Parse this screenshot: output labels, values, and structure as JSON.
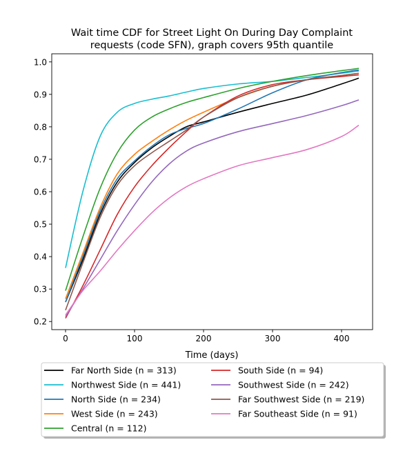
{
  "chart_data": {
    "type": "line",
    "title": "Wait time CDF for Street Light On During Day Complaint",
    "title2": "requests (code SFN), graph covers 95th quantile",
    "xlabel": "Time (days)",
    "ylabel": "",
    "xlim": [
      -20,
      445
    ],
    "ylim": [
      0.175,
      1.025
    ],
    "xticks": [
      0,
      100,
      200,
      300,
      400
    ],
    "yticks": [
      0.2,
      0.3,
      0.4,
      0.5,
      0.6,
      0.7,
      0.8,
      0.9,
      1.0
    ],
    "xtick_labels": [
      "0",
      "100",
      "200",
      "300",
      "400"
    ],
    "ytick_labels": [
      "0.2",
      "0.3",
      "0.4",
      "0.5",
      "0.6",
      "0.7",
      "0.8",
      "0.9",
      "1.0"
    ],
    "x": [
      0,
      25,
      50,
      75,
      100,
      125,
      150,
      175,
      200,
      250,
      300,
      350,
      400,
      425
    ],
    "legend_position": "below",
    "series": [
      {
        "name": "Far North Side (n = 313)",
        "color": "#000000",
        "values": [
          0.26,
          0.39,
          0.53,
          0.63,
          0.69,
          0.735,
          0.77,
          0.8,
          0.815,
          0.845,
          0.872,
          0.898,
          0.932,
          0.95
        ]
      },
      {
        "name": "Northwest Side (n = 441)",
        "color": "#17becf",
        "values": [
          0.365,
          0.6,
          0.77,
          0.845,
          0.872,
          0.885,
          0.895,
          0.907,
          0.918,
          0.932,
          0.94,
          0.952,
          0.965,
          0.972
        ]
      },
      {
        "name": "North Side (n = 234)",
        "color": "#1f77b4",
        "values": [
          0.26,
          0.4,
          0.54,
          0.64,
          0.695,
          0.74,
          0.775,
          0.795,
          0.81,
          0.855,
          0.905,
          0.945,
          0.967,
          0.975
        ]
      },
      {
        "name": "West Side (n = 243)",
        "color": "#ff7f0e",
        "values": [
          0.27,
          0.41,
          0.55,
          0.655,
          0.715,
          0.755,
          0.79,
          0.82,
          0.845,
          0.89,
          0.925,
          0.945,
          0.958,
          0.965
        ]
      },
      {
        "name": "Central (n = 112)",
        "color": "#2ca02c",
        "values": [
          0.295,
          0.46,
          0.61,
          0.72,
          0.79,
          0.83,
          0.855,
          0.875,
          0.89,
          0.918,
          0.94,
          0.958,
          0.973,
          0.98
        ]
      },
      {
        "name": "South Side (n = 94)",
        "color": "#d62728",
        "values": [
          0.21,
          0.31,
          0.42,
          0.53,
          0.615,
          0.68,
          0.735,
          0.785,
          0.83,
          0.895,
          0.93,
          0.945,
          0.955,
          0.96
        ]
      },
      {
        "name": "Southwest Side (n = 242)",
        "color": "#9467bd",
        "values": [
          0.215,
          0.3,
          0.39,
          0.48,
          0.56,
          0.63,
          0.685,
          0.725,
          0.75,
          0.785,
          0.81,
          0.835,
          0.865,
          0.883
        ]
      },
      {
        "name": "Far Southwest Side (n = 219)",
        "color": "#8c564b",
        "values": [
          0.235,
          0.38,
          0.52,
          0.62,
          0.68,
          0.72,
          0.755,
          0.79,
          0.83,
          0.89,
          0.925,
          0.945,
          0.958,
          0.965
        ]
      },
      {
        "name": "Far Southeast Side (n = 91)",
        "color": "#e377c2",
        "values": [
          0.22,
          0.295,
          0.355,
          0.42,
          0.48,
          0.535,
          0.58,
          0.615,
          0.64,
          0.68,
          0.705,
          0.73,
          0.77,
          0.805
        ]
      }
    ]
  }
}
